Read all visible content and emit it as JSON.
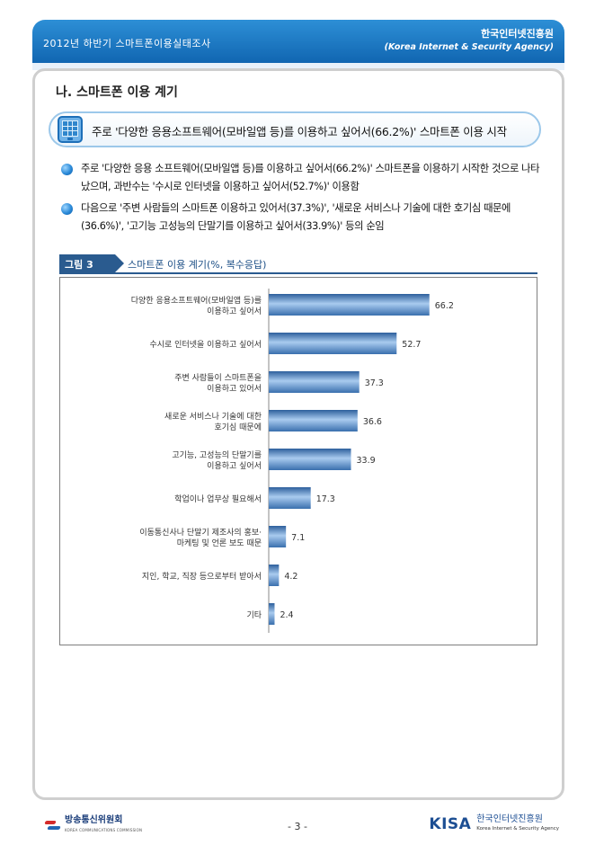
{
  "header": {
    "left_title": "2012년 하반기 스마트폰이용실태조사",
    "org_name": "한국인터넷진흥원",
    "org_name_en": "(Korea Internet & Security Agency)"
  },
  "section": {
    "title": "나. 스마트폰 이용 계기"
  },
  "callout": {
    "icon": "smartphone-icon",
    "text": "주로 '다양한 응용소프트웨어(모바일앱 등)를 이용하고 싶어서(66.2%)' 스마트폰 이용 시작"
  },
  "bullets": [
    {
      "text": "주로 '다양한 응용 소프트웨어(모바일앱 등)를 이용하고 싶어서(66.2%)' 스마트폰을 이용하기 시작한 것으로 나타났으며, 과반수는 '수시로 인터넷을 이용하고 싶어서(52.7%)' 이용함"
    },
    {
      "text": "다음으로 '주변 사람들의 스마트폰 이용하고 있어서(37.3%)', '새로운 서비스나 기술에 대한 호기심 때문에(36.6%)', '고기능 고성능의 단말기를 이용하고 싶어서(33.9%)' 등의 순임"
    }
  ],
  "figure": {
    "label": "그림 3",
    "caption": "스마트폰 이용 계기(%, 복수응답)"
  },
  "chart_data": {
    "type": "bar",
    "orientation": "horizontal",
    "categories": [
      [
        "다양한 응용소프트웨어(모바일앱 등)를",
        "이용하고 싶어서"
      ],
      [
        "수시로 인터넷을 이용하고 싶어서"
      ],
      [
        "주변 사람들이 스마트폰을",
        "이용하고 있어서"
      ],
      [
        "새로운 서비스나 기술에 대한",
        "호기심 때문에"
      ],
      [
        "고기능, 고성능의 단말기를",
        "이용하고 싶어서"
      ],
      [
        "학업이나 업무상 필요해서"
      ],
      [
        "이동통신사나 단말기 제조사의 홍보·",
        "마케팅 및 언론 보도 때문"
      ],
      [
        "지인, 학교, 직장 등으로부터 받아서"
      ],
      [
        "기타"
      ]
    ],
    "values": [
      66.2,
      52.7,
      37.3,
      36.6,
      33.9,
      17.3,
      7.1,
      4.2,
      2.4
    ],
    "value_labels": [
      "66.2",
      "52.7",
      "37.3",
      "36.6",
      "33.9",
      "17.3",
      "7.1",
      "4.2",
      "2.4"
    ],
    "xlim": [
      0,
      100
    ],
    "grid": false,
    "bar_color": "#4f86c2",
    "title": "",
    "xlabel": "",
    "ylabel": ""
  },
  "footer": {
    "left_org": "방송통신위원회",
    "left_org_en": "KOREA COMMUNICATIONS COMMISSION",
    "page_number": "- 3 -",
    "right_brand": "KISA",
    "right_org": "한국인터넷진흥원",
    "right_org_en": "Korea Internet & Security Agency"
  }
}
